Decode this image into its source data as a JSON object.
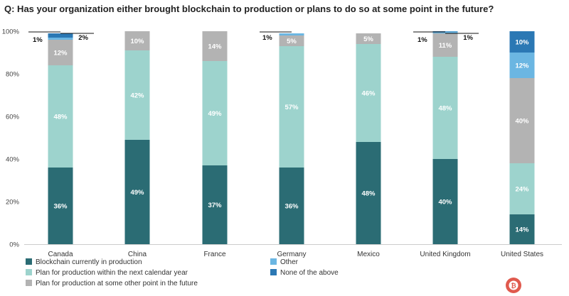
{
  "chart_data": {
    "type": "stacked_bar",
    "title": "Q: Has your organization either brought blockchain to production or plans to do so at some point in the future?",
    "categories": [
      "Canada",
      "China",
      "France",
      "Germany",
      "Mexico",
      "United Kingdom",
      "United States"
    ],
    "ylim": [
      0,
      100
    ],
    "yticks": [
      "0%",
      "20%",
      "40%",
      "60%",
      "80%",
      "100%"
    ],
    "series": [
      {
        "name": "Blockchain currently in production",
        "color": "#2b6c74",
        "values": [
          36,
          49,
          37,
          36,
          48,
          40,
          14
        ],
        "labels": [
          "36%",
          "49%",
          "37%",
          "36%",
          "48%",
          "40%",
          "14%"
        ]
      },
      {
        "name": "Plan for production within the next calendar year",
        "color": "#9dd3cd",
        "values": [
          48,
          42,
          49,
          57,
          46,
          48,
          24
        ],
        "labels": [
          "48%",
          "42%",
          "49%",
          "57%",
          "46%",
          "48%",
          "24%"
        ]
      },
      {
        "name": "Plan for production at some other point in the future",
        "color": "#b3b3b3",
        "values": [
          12,
          10,
          14,
          5,
          5,
          11,
          40
        ],
        "labels": [
          "12%",
          "10%",
          "14%",
          "5%",
          "5%",
          "11%",
          "40%"
        ]
      },
      {
        "name": "Other",
        "color": "#6bb6e2",
        "values": [
          1,
          0,
          0,
          1,
          0,
          1,
          12
        ],
        "labels": [
          "1%",
          "",
          "",
          "1%",
          "",
          "1%",
          "12%"
        ]
      },
      {
        "name": "None of the above",
        "color": "#2b78b4",
        "values": [
          2,
          0,
          0,
          0,
          0,
          1,
          10
        ],
        "labels": [
          "2%",
          "",
          "",
          "",
          "",
          "1%",
          "10%"
        ]
      }
    ],
    "legend": {
      "placement": "bottom-left"
    }
  }
}
